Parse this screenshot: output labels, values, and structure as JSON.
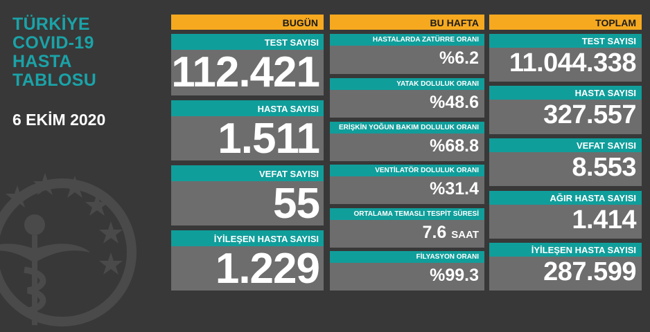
{
  "title": {
    "lines": [
      "TÜRKİYE",
      "COVID-19",
      "HASTA",
      "TABLOSU"
    ]
  },
  "date": "6 EKİM 2020",
  "colors": {
    "background": "#383838",
    "header": "#f6a91f",
    "label": "#109e9b",
    "card": "#6d6d6d",
    "title": "#1aa3a8"
  },
  "icons": {
    "emblem": "ministry-emblem-icon"
  },
  "today": {
    "header": "BUGÜN",
    "items": [
      {
        "label": "TEST SAYISI",
        "value": "112.421"
      },
      {
        "label": "HASTA SAYISI",
        "value": "1.511"
      },
      {
        "label": "VEFAT SAYISI",
        "value": "55"
      },
      {
        "label": "İYİLEŞEN HASTA SAYISI",
        "value": "1.229"
      }
    ]
  },
  "week": {
    "header": "BU HAFTA",
    "items": [
      {
        "label": "HASTALARDA ZATÜRRE ORANI",
        "value": "%6.2"
      },
      {
        "label": "YATAK DOLULUK ORANI",
        "value": "%48.6"
      },
      {
        "label": "ERİŞKİN YOĞUN BAKIM DOLULUK ORANI",
        "value": "%68.8"
      },
      {
        "label": "VENTİLATÖR DOLULUK ORANI",
        "value": "%31.4"
      },
      {
        "label": "ORTALAMA TEMASLI TESPİT SÜRESİ",
        "value": "7.6",
        "unit": "SAAT"
      },
      {
        "label": "FİLYASYON ORANI",
        "value": "%99.3"
      }
    ]
  },
  "total": {
    "header": "TOPLAM",
    "items": [
      {
        "label": "TEST SAYISI",
        "value": "11.044.338"
      },
      {
        "label": "HASTA SAYISI",
        "value": "327.557"
      },
      {
        "label": "VEFAT SAYISI",
        "value": "8.553"
      },
      {
        "label": "AĞIR HASTA SAYISI",
        "value": "1.414"
      },
      {
        "label": "İYİLEŞEN HASTA SAYISI",
        "value": "287.599"
      }
    ]
  }
}
